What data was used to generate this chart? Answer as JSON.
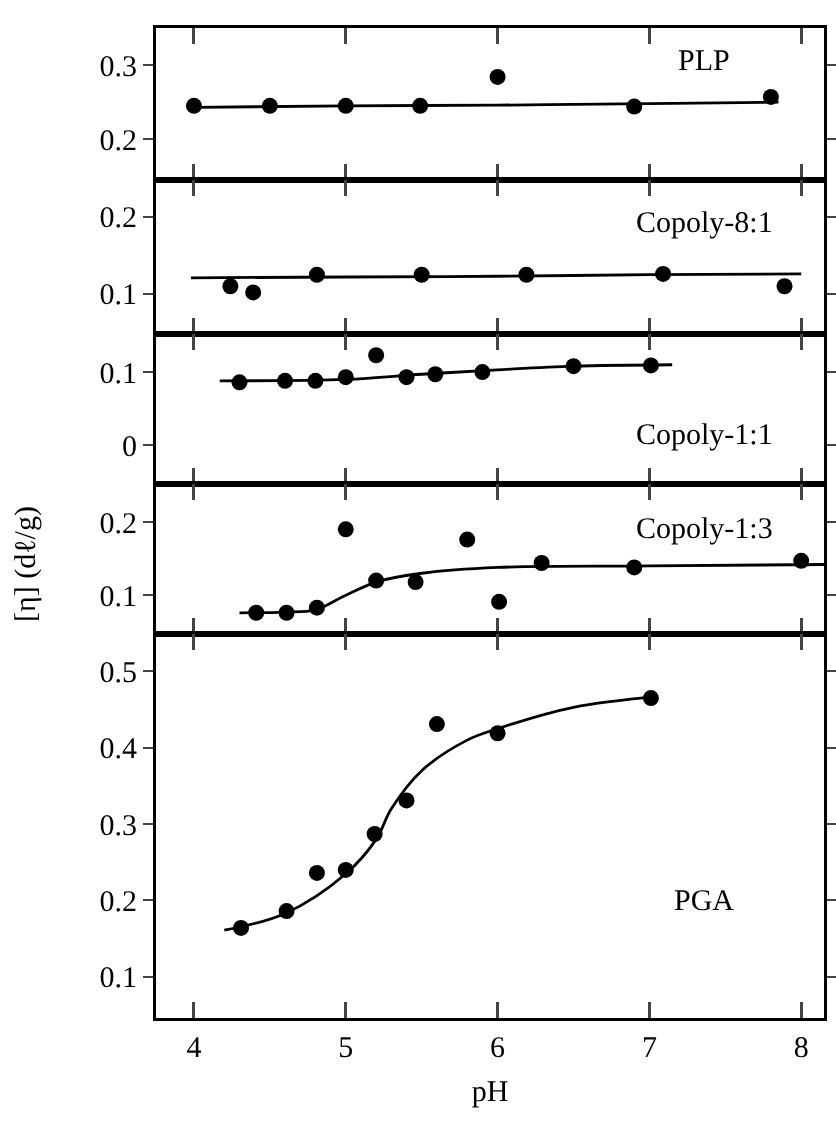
{
  "chart_data": [
    {
      "type": "scatter",
      "title": "PLP",
      "xlim": [
        3.75,
        8.15
      ],
      "xticks": [
        4,
        5,
        6,
        7,
        8
      ],
      "ylim": [
        0.145,
        0.35
      ],
      "yticks": [
        0.2,
        0.3
      ],
      "tick_labels": "y",
      "series": [
        {
          "marker": "circle",
          "color": "#000000",
          "x": [
            4.0,
            4.5,
            5.0,
            5.49,
            6.0,
            6.9,
            7.8
          ],
          "values": [
            0.245,
            0.245,
            0.245,
            0.245,
            0.284,
            0.244,
            0.257
          ]
        },
        {
          "type": "line",
          "marker": "none",
          "color": "#000000",
          "x": [
            4.0,
            5.0,
            6.0,
            7.0,
            7.85
          ],
          "values": [
            0.243,
            0.245,
            0.246,
            0.248,
            0.25
          ]
        }
      ]
    },
    {
      "type": "scatter",
      "title": "Copoly-8:1",
      "xlim": [
        3.75,
        8.15
      ],
      "xticks": [
        4,
        5,
        6,
        7,
        8
      ],
      "ylim": [
        0.048,
        0.248
      ],
      "yticks": [
        0.1,
        0.2
      ],
      "tick_labels": "y",
      "series": [
        {
          "marker": "circle",
          "color": "#000000",
          "x": [
            4.24,
            4.39,
            4.81,
            5.5,
            6.19,
            7.09,
            7.89
          ],
          "values": [
            0.11,
            0.102,
            0.125,
            0.125,
            0.125,
            0.126,
            0.11
          ]
        },
        {
          "type": "line",
          "marker": "none",
          "color": "#000000",
          "x": [
            3.98,
            5.0,
            6.0,
            7.0,
            8.0
          ],
          "values": [
            0.121,
            0.122,
            0.123,
            0.125,
            0.126
          ]
        }
      ]
    },
    {
      "type": "scatter",
      "title": "Copoly-1:1",
      "xlim": [
        3.75,
        8.15
      ],
      "xticks": [
        4,
        5,
        6,
        7,
        8
      ],
      "ylim": [
        -0.053,
        0.152
      ],
      "yticks": [
        0,
        0.1
      ],
      "tick_labels": "y",
      "series": [
        {
          "marker": "circle",
          "color": "#000000",
          "x": [
            4.3,
            4.6,
            4.8,
            5.0,
            5.2,
            5.4,
            5.59,
            5.9,
            6.5,
            7.01
          ],
          "values": [
            0.086,
            0.088,
            0.088,
            0.093,
            0.123,
            0.093,
            0.097,
            0.1,
            0.108,
            0.109
          ]
        },
        {
          "type": "line",
          "marker": "none",
          "color": "#000000",
          "x": [
            4.17,
            5.0,
            5.5,
            6.0,
            6.5,
            7.15
          ],
          "values": [
            0.088,
            0.09,
            0.097,
            0.103,
            0.108,
            0.11
          ]
        }
      ]
    },
    {
      "type": "scatter",
      "title": "Copoly-1:3",
      "ylabel": "[η] (dℓ/g)",
      "xlim": [
        3.75,
        8.15
      ],
      "xticks": [
        4,
        5,
        6,
        7,
        8
      ],
      "ylim": [
        0.047,
        0.252
      ],
      "yticks": [
        0.1,
        0.2
      ],
      "tick_labels": "y",
      "series": [
        {
          "marker": "circle",
          "color": "#000000",
          "x": [
            4.41,
            4.61,
            4.81,
            5.0,
            5.2,
            5.46,
            5.8,
            6.01,
            6.29,
            6.9,
            8.0
          ],
          "values": [
            0.076,
            0.076,
            0.083,
            0.19,
            0.12,
            0.118,
            0.176,
            0.091,
            0.144,
            0.138,
            0.147
          ]
        },
        {
          "type": "line",
          "marker": "none",
          "color": "#000000",
          "x": [
            4.3,
            4.6,
            4.8,
            5.0,
            5.2,
            5.5,
            6.0,
            7.0,
            8.15
          ],
          "values": [
            0.076,
            0.077,
            0.08,
            0.1,
            0.118,
            0.13,
            0.138,
            0.14,
            0.142
          ]
        }
      ]
    },
    {
      "type": "scatter",
      "title": "PGA",
      "xlabel": "pH",
      "xlim": [
        3.75,
        8.15
      ],
      "xticks": [
        4,
        5,
        6,
        7,
        8
      ],
      "ylim": [
        0.046,
        0.549
      ],
      "yticks": [
        0.1,
        0.2,
        0.3,
        0.4,
        0.5
      ],
      "series": [
        {
          "marker": "circle",
          "color": "#000000",
          "x": [
            4.31,
            4.61,
            4.81,
            5.0,
            5.19,
            5.4,
            5.6,
            6.0,
            7.01
          ],
          "values": [
            0.164,
            0.186,
            0.236,
            0.24,
            0.287,
            0.331,
            0.431,
            0.419,
            0.465
          ]
        },
        {
          "type": "line",
          "marker": "none",
          "color": "#000000",
          "x": [
            4.2,
            4.6,
            5.0,
            5.2,
            5.3,
            5.5,
            5.8,
            6.0,
            6.5,
            7.05
          ],
          "values": [
            0.161,
            0.183,
            0.235,
            0.28,
            0.32,
            0.37,
            0.41,
            0.425,
            0.453,
            0.467
          ]
        }
      ]
    }
  ]
}
